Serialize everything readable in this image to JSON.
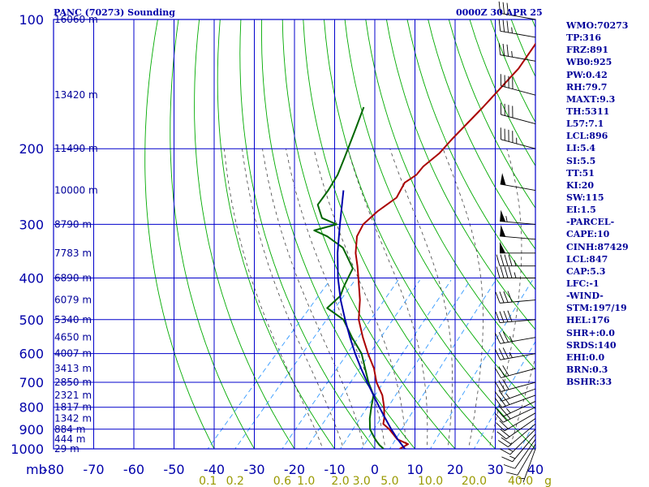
{
  "header": {
    "station": "PANC (70273) Sounding",
    "timestamp": "0000Z 30 APR 25"
  },
  "indices": [
    "WMO:70273",
    "TP:316",
    "FRZ:891",
    "WB0:925",
    "PW:0.42",
    "RH:79.7",
    "MAXT:9.3",
    "TH:5311",
    "L57:7.1",
    "LCL:896",
    "LI:5.4",
    "SI:5.5",
    "TT:51",
    "KI:20",
    "SW:115",
    "EI:1.5",
    "-PARCEL-",
    "CAPE:10",
    "CINH:87429",
    "LCL:847",
    "CAP:5.3",
    "LFC:-1",
    "-WIND-",
    "STM:197/19",
    "HEL:176",
    "SHR+:0.0",
    "SRDS:140",
    "EHI:0.0",
    "BRN:0.3",
    "BSHR:33"
  ],
  "colors": {
    "grid": "#0000cc",
    "dry_adiabats": "#00aa00",
    "temperature": "#aa0000",
    "dewpoint": "#006600",
    "parcel": "#0000aa",
    "moist_adiabats": "#444444",
    "mixing_ratio": "#3399ff",
    "mixing_ratio_labels": "#999900",
    "height_labels": "#000099",
    "axis_labels": "#0000aa",
    "barbs": "#000000"
  },
  "chart_data": {
    "type": "line",
    "title": "PANC (70273) Sounding",
    "xlabel": "",
    "ylabel": "mb",
    "x_axis_unit": "°C",
    "y_scale": "log-pressure",
    "ylim": [
      1000,
      100
    ],
    "xlim": [
      -80,
      40
    ],
    "pressure_ticks": [
      100,
      200,
      300,
      400,
      500,
      600,
      700,
      800,
      900,
      1000
    ],
    "temperature_ticks": [
      -80,
      -70,
      -60,
      -50,
      -40,
      -30,
      -20,
      -10,
      0,
      10,
      20,
      30,
      40
    ],
    "grid": true,
    "height_levels": [
      {
        "pressure": 1000,
        "label": "29 m"
      },
      {
        "pressure": 950,
        "label": "444 m"
      },
      {
        "pressure": 900,
        "label": "884 m"
      },
      {
        "pressure": 850,
        "label": "1342 m"
      },
      {
        "pressure": 800,
        "label": "1817 m"
      },
      {
        "pressure": 750,
        "label": "2321 m"
      },
      {
        "pressure": 700,
        "label": "2850 m"
      },
      {
        "pressure": 650,
        "label": "3413 m"
      },
      {
        "pressure": 600,
        "label": "4007 m"
      },
      {
        "pressure": 550,
        "label": "4650 m"
      },
      {
        "pressure": 500,
        "label": "5340 m"
      },
      {
        "pressure": 450,
        "label": "6079 m"
      },
      {
        "pressure": 400,
        "label": "6890 m"
      },
      {
        "pressure": 350,
        "label": "7783 m"
      },
      {
        "pressure": 300,
        "label": "8790 m"
      },
      {
        "pressure": 250,
        "label": "10000 m"
      },
      {
        "pressure": 200,
        "label": "11490 m"
      },
      {
        "pressure": 150,
        "label": "13420 m"
      },
      {
        "pressure": 100,
        "label": "16060 m"
      }
    ],
    "mixing_ratio_lines": [
      0.1,
      0.2,
      0.6,
      1.0,
      2.0,
      3.0,
      5.0,
      10.0,
      20.0,
      40.0
    ],
    "mixing_ratio_labels": [
      "0.1",
      "0.2",
      "0.6",
      "1.0",
      "2.0",
      "3.0",
      "5.0",
      "10.0",
      "20.0",
      "40.0"
    ],
    "mixing_ratio_unit": "g",
    "series": [
      {
        "name": "temperature",
        "points": [
          [
            1000,
            6.2
          ],
          [
            975,
            7.2
          ],
          [
            950,
            3.4
          ],
          [
            925,
            1.3
          ],
          [
            900,
            -0.9
          ],
          [
            875,
            -3.6
          ],
          [
            850,
            -4.6
          ],
          [
            800,
            -7.2
          ],
          [
            750,
            -10.4
          ],
          [
            700,
            -14.8
          ],
          [
            650,
            -18.6
          ],
          [
            600,
            -23.5
          ],
          [
            550,
            -28.5
          ],
          [
            500,
            -33.6
          ],
          [
            450,
            -37.8
          ],
          [
            400,
            -43.2
          ],
          [
            375,
            -46.2
          ],
          [
            350,
            -49.6
          ],
          [
            320,
            -53.1
          ],
          [
            300,
            -54.3
          ],
          [
            280,
            -53.7
          ],
          [
            260,
            -52.1
          ],
          [
            240,
            -53.5
          ],
          [
            230,
            -52.4
          ],
          [
            220,
            -52.6
          ],
          [
            205,
            -51.6
          ],
          [
            190,
            -51.7
          ],
          [
            160,
            -51.3
          ],
          [
            130,
            -51.3
          ],
          [
            115,
            -52.6
          ],
          [
            100,
            -54.4
          ]
        ]
      },
      {
        "name": "dewpoint",
        "points": [
          [
            1000,
            2.2
          ],
          [
            980,
            0.3
          ],
          [
            960,
            -1.3
          ],
          [
            940,
            -2.8
          ],
          [
            900,
            -5.7
          ],
          [
            850,
            -8.2
          ],
          [
            800,
            -10.4
          ],
          [
            750,
            -12.6
          ],
          [
            700,
            -16.8
          ],
          [
            650,
            -20.8
          ],
          [
            600,
            -25.1
          ],
          [
            550,
            -31.2
          ],
          [
            500,
            -37.4
          ],
          [
            470,
            -44.1
          ],
          [
            440,
            -43.6
          ],
          [
            420,
            -44.8
          ],
          [
            400,
            -45.8
          ],
          [
            380,
            -46.8
          ],
          [
            360,
            -50.3
          ],
          [
            340,
            -54.0
          ],
          [
            320,
            -60.5
          ],
          [
            310,
            -65.1
          ],
          [
            300,
            -60.9
          ],
          [
            290,
            -66.0
          ],
          [
            270,
            -70.1
          ],
          [
            250,
            -70.8
          ],
          [
            230,
            -72.0
          ],
          [
            210,
            -74.2
          ],
          [
            180,
            -78.0
          ],
          [
            160,
            -81.0
          ]
        ]
      },
      {
        "name": "parcel",
        "points": [
          [
            1000,
            7.5
          ],
          [
            950,
            3.5
          ],
          [
            900,
            -0.4
          ],
          [
            850,
            -4.3
          ],
          [
            800,
            -8.4
          ],
          [
            750,
            -12.6
          ],
          [
            700,
            -17.1
          ],
          [
            650,
            -21.8
          ],
          [
            600,
            -26.7
          ],
          [
            550,
            -31.7
          ],
          [
            500,
            -37.0
          ],
          [
            450,
            -42.6
          ],
          [
            400,
            -48.3
          ],
          [
            350,
            -54.1
          ],
          [
            300,
            -60.1
          ],
          [
            250,
            -67.0
          ]
        ]
      }
    ],
    "wind_barbs": [
      {
        "pressure": 1000,
        "dir": 200,
        "speed_kt": 5
      },
      {
        "pressure": 975,
        "dir": 210,
        "speed_kt": 10
      },
      {
        "pressure": 950,
        "dir": 215,
        "speed_kt": 10
      },
      {
        "pressure": 925,
        "dir": 220,
        "speed_kt": 15
      },
      {
        "pressure": 900,
        "dir": 225,
        "speed_kt": 15
      },
      {
        "pressure": 875,
        "dir": 230,
        "speed_kt": 20
      },
      {
        "pressure": 850,
        "dir": 235,
        "speed_kt": 20
      },
      {
        "pressure": 825,
        "dir": 240,
        "speed_kt": 20
      },
      {
        "pressure": 800,
        "dir": 245,
        "speed_kt": 25
      },
      {
        "pressure": 775,
        "dir": 245,
        "speed_kt": 25
      },
      {
        "pressure": 750,
        "dir": 250,
        "speed_kt": 25
      },
      {
        "pressure": 725,
        "dir": 250,
        "speed_kt": 25
      },
      {
        "pressure": 700,
        "dir": 255,
        "speed_kt": 30
      },
      {
        "pressure": 650,
        "dir": 255,
        "speed_kt": 30
      },
      {
        "pressure": 600,
        "dir": 260,
        "speed_kt": 35
      },
      {
        "pressure": 550,
        "dir": 260,
        "speed_kt": 35
      },
      {
        "pressure": 500,
        "dir": 265,
        "speed_kt": 40
      },
      {
        "pressure": 450,
        "dir": 265,
        "speed_kt": 40
      },
      {
        "pressure": 400,
        "dir": 270,
        "speed_kt": 45
      },
      {
        "pressure": 375,
        "dir": 270,
        "speed_kt": 45
      },
      {
        "pressure": 350,
        "dir": 270,
        "speed_kt": 50
      },
      {
        "pressure": 325,
        "dir": 275,
        "speed_kt": 50
      },
      {
        "pressure": 300,
        "dir": 275,
        "speed_kt": 55
      },
      {
        "pressure": 250,
        "dir": 280,
        "speed_kt": 50
      },
      {
        "pressure": 200,
        "dir": 285,
        "speed_kt": 45
      },
      {
        "pressure": 175,
        "dir": 285,
        "speed_kt": 40
      },
      {
        "pressure": 150,
        "dir": 285,
        "speed_kt": 40
      },
      {
        "pressure": 125,
        "dir": 280,
        "speed_kt": 35
      },
      {
        "pressure": 110,
        "dir": 280,
        "speed_kt": 35
      },
      {
        "pressure": 100,
        "dir": 280,
        "speed_kt": 30
      }
    ]
  }
}
